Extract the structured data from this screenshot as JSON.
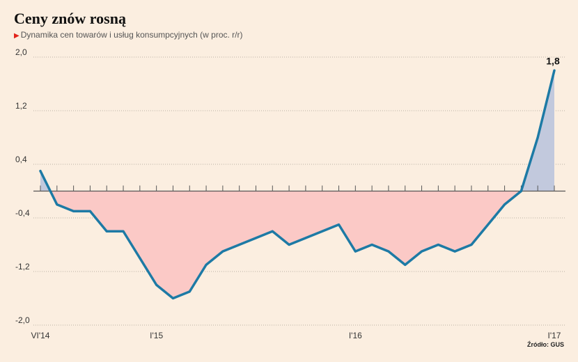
{
  "header": {
    "title": "Ceny znów rosną",
    "subtitle": "Dynamika cen towarów i usług konsumpcyjnych (w proc. r/r)"
  },
  "source": "Źródło: GUS",
  "colors": {
    "line": "#1d7aa5",
    "negative_fill": "#fbc9c6",
    "positive_fill": "#c2c9dd",
    "grid": "#b8b0a5",
    "zero_line": "#555555"
  },
  "chart_data": {
    "type": "area",
    "title": "Ceny znów rosną",
    "subtitle": "Dynamika cen towarów i usług konsumpcyjnych (w proc. r/r)",
    "xlabel": "",
    "ylabel": "",
    "ylim": [
      -2.0,
      2.0
    ],
    "y_ticks": [
      "2,0",
      "1,2",
      "0,4",
      "-0,4",
      "-1,2",
      "-2,0"
    ],
    "y_tick_values": [
      2.0,
      1.2,
      0.4,
      -0.4,
      -1.2,
      -2.0
    ],
    "x_tick_labels": [
      {
        "index": 0,
        "label": "VI'14"
      },
      {
        "index": 7,
        "label": "I'15"
      },
      {
        "index": 19,
        "label": "I'16"
      },
      {
        "index": 31,
        "label": "I'17"
      }
    ],
    "grid": true,
    "x": [
      "2014-06",
      "2014-07",
      "2014-08",
      "2014-09",
      "2014-10",
      "2014-11",
      "2014-12",
      "2015-01",
      "2015-02",
      "2015-03",
      "2015-04",
      "2015-05",
      "2015-06",
      "2015-07",
      "2015-08",
      "2015-09",
      "2015-10",
      "2015-11",
      "2015-12",
      "2016-01",
      "2016-02",
      "2016-03",
      "2016-04",
      "2016-05",
      "2016-06",
      "2016-07",
      "2016-08",
      "2016-09",
      "2016-10",
      "2016-11",
      "2016-12",
      "2017-01"
    ],
    "series": [
      {
        "values": [
          0.3,
          -0.2,
          -0.3,
          -0.3,
          -0.6,
          -0.6,
          -1.0,
          -1.4,
          -1.6,
          -1.5,
          -1.1,
          -0.9,
          -0.8,
          -0.7,
          -0.6,
          -0.8,
          -0.7,
          -0.6,
          -0.5,
          -0.9,
          -0.8,
          -0.9,
          -1.1,
          -0.9,
          -0.8,
          -0.9,
          -0.8,
          -0.5,
          -0.2,
          0.0,
          0.8,
          1.8
        ]
      }
    ],
    "annotations": [
      {
        "index": 31,
        "text": "1,8"
      }
    ]
  }
}
